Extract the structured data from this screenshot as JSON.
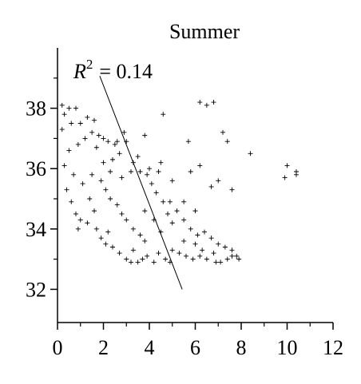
{
  "chart_data": {
    "type": "scatter",
    "title": "Summer",
    "annotation": {
      "base": "R",
      "sup": "2",
      "text": "= 0.14"
    },
    "xlim": [
      0,
      12
    ],
    "xticks": [
      0,
      2,
      4,
      6,
      8,
      10,
      12
    ],
    "xminorticks": [
      1,
      3,
      5,
      7,
      9,
      11
    ],
    "ylim": [
      30.9,
      40
    ],
    "yticks": [
      32,
      34,
      36,
      38
    ],
    "yminorticks": [
      33,
      35,
      37,
      39
    ],
    "color": "#000000",
    "trendline": {
      "x": [
        1.84,
        5.43
      ],
      "y": [
        39.07,
        32.0
      ]
    },
    "x": [
      0.2,
      0.5,
      0.8,
      0.3,
      0.2,
      0.6,
      1.0,
      1.3,
      1.6,
      1.5,
      1.2,
      0.9,
      0.5,
      0.3,
      0.7,
      0.4,
      0.6,
      0.8,
      1.0,
      0.9,
      1.8,
      2.0,
      2.2,
      2.5,
      2.7,
      2.4,
      1.7,
      2.6,
      3.0,
      2.9,
      1.1,
      1.4,
      1.6,
      1.3,
      1.7,
      1.9,
      2.1,
      2.4,
      2.7,
      3.0,
      3.2,
      3.5,
      3.7,
      3.3,
      3.9,
      4.2,
      4.4,
      4.7,
      4.9,
      2.2,
      1.5,
      1.9,
      2.1,
      2.3,
      2.6,
      2.8,
      3.0,
      3.3,
      3.6,
      3.8,
      2.0,
      2.3,
      2.8,
      3.2,
      3.6,
      3.9,
      4.1,
      4.3,
      4.6,
      4.8,
      3.5,
      3.3,
      4.0,
      4.4,
      4.9,
      5.2,
      5.5,
      5.8,
      6.1,
      6.4,
      6.7,
      7.0,
      7.3,
      7.6,
      7.8,
      5.0,
      5.3,
      5.6,
      5.9,
      6.2,
      6.5,
      6.8,
      7.1,
      7.4,
      7.9,
      6.0,
      5.5,
      6.3,
      6.9,
      7.6,
      4.6,
      3.8,
      6.2,
      6.5,
      6.8,
      5.7,
      7.2,
      7.4,
      8.4,
      9.9,
      10.0,
      10.4,
      10.4,
      5.8,
      6.2,
      6.7,
      7.0,
      7.6,
      5.5,
      6.0,
      4.5,
      5.0,
      3.8,
      4.2,
      4.5,
      5.0
    ],
    "y": [
      38.1,
      38.0,
      38.0,
      37.8,
      37.3,
      37.5,
      37.5,
      37.7,
      37.6,
      37.2,
      37.0,
      36.8,
      36.6,
      36.1,
      35.8,
      35.3,
      34.9,
      34.5,
      34.3,
      34.0,
      37.1,
      37.0,
      36.9,
      36.8,
      36.5,
      36.3,
      36.7,
      36.9,
      36.9,
      37.2,
      35.5,
      35.0,
      34.6,
      34.2,
      34.0,
      33.7,
      33.5,
      33.4,
      33.2,
      33.0,
      32.9,
      32.9,
      33.0,
      33.3,
      33.1,
      32.9,
      33.2,
      33.0,
      32.9,
      33.9,
      35.8,
      35.6,
      35.3,
      35.0,
      34.8,
      34.5,
      34.3,
      34.0,
      33.8,
      33.6,
      36.2,
      35.9,
      35.7,
      35.9,
      35.9,
      35.8,
      35.5,
      35.2,
      34.9,
      34.5,
      36.4,
      36.2,
      36.0,
      35.9,
      34.9,
      34.6,
      34.3,
      34.0,
      33.8,
      33.9,
      33.7,
      33.5,
      33.4,
      33.3,
      33.1,
      33.3,
      33.2,
      33.1,
      33.0,
      33.1,
      33.0,
      33.2,
      32.9,
      33.0,
      33.0,
      33.5,
      33.6,
      33.3,
      32.9,
      33.1,
      37.8,
      37.1,
      38.2,
      38.1,
      38.2,
      36.9,
      37.2,
      36.9,
      36.5,
      35.7,
      36.1,
      35.8,
      35.9,
      35.9,
      36.1,
      35.4,
      35.6,
      35.3,
      34.9,
      34.6,
      36.2,
      35.6,
      34.6,
      34.3,
      33.9,
      34.2
    ]
  }
}
